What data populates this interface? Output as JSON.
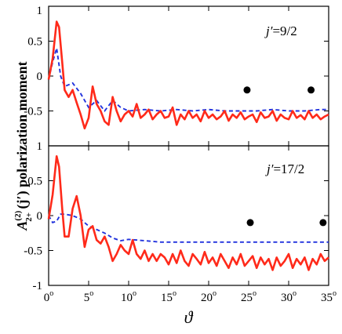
{
  "chart_data": [
    {
      "type": "line",
      "panel": "top",
      "annotation": "j′=9/2",
      "annotation_prefix": "j′",
      "annotation_value": "=9/2",
      "ylim": [
        -1,
        1
      ],
      "yticks": [
        -1,
        -0.5,
        0,
        0.5,
        1
      ],
      "ytick_labels": [
        "-1",
        "-0.5",
        "0",
        "0.5",
        "1"
      ],
      "xlim": [
        0,
        35
      ],
      "series": [
        {
          "style": "solid-red",
          "x": [
            0,
            0.5,
            1,
            1.3,
            1.7,
            2,
            2.5,
            3,
            3.5,
            4,
            4.5,
            5,
            5.5,
            6,
            6.5,
            7,
            7.5,
            8,
            8.5,
            9,
            9.5,
            10,
            10.5,
            11,
            11.5,
            12,
            12.5,
            13,
            13.5,
            14,
            14.5,
            15,
            15.5,
            16,
            16.5,
            17,
            17.5,
            18,
            18.5,
            19,
            19.5,
            20,
            20.5,
            21,
            21.5,
            22,
            22.5,
            23,
            23.5,
            24,
            24.5,
            25,
            25.5,
            26,
            26.5,
            27,
            27.5,
            28,
            28.5,
            29,
            29.5,
            30,
            30.5,
            31,
            31.5,
            32,
            32.5,
            33,
            33.5,
            34,
            34.5,
            35
          ],
          "y": [
            -0.05,
            0.25,
            0.78,
            0.7,
            0.2,
            -0.2,
            -0.3,
            -0.2,
            -0.38,
            -0.55,
            -0.75,
            -0.6,
            -0.15,
            -0.4,
            -0.5,
            -0.65,
            -0.7,
            -0.3,
            -0.5,
            -0.65,
            -0.55,
            -0.5,
            -0.58,
            -0.4,
            -0.6,
            -0.55,
            -0.48,
            -0.62,
            -0.55,
            -0.5,
            -0.6,
            -0.58,
            -0.45,
            -0.7,
            -0.55,
            -0.62,
            -0.5,
            -0.6,
            -0.55,
            -0.65,
            -0.5,
            -0.6,
            -0.55,
            -0.62,
            -0.58,
            -0.5,
            -0.64,
            -0.55,
            -0.6,
            -0.52,
            -0.62,
            -0.58,
            -0.55,
            -0.66,
            -0.52,
            -0.6,
            -0.58,
            -0.5,
            -0.64,
            -0.55,
            -0.6,
            -0.62,
            -0.5,
            -0.6,
            -0.56,
            -0.62,
            -0.5,
            -0.6,
            -0.55,
            -0.62,
            -0.58,
            -0.55
          ]
        },
        {
          "style": "dashed-blue",
          "x": [
            0,
            0.5,
            1,
            1.5,
            2,
            3,
            4,
            5,
            6,
            7,
            8,
            9,
            10,
            12,
            14,
            16,
            18,
            20,
            22,
            24,
            26,
            28,
            30,
            32,
            34,
            35
          ],
          "y": [
            -0.05,
            0.2,
            0.4,
            0.0,
            -0.15,
            -0.1,
            -0.25,
            -0.45,
            -0.35,
            -0.5,
            -0.35,
            -0.45,
            -0.5,
            -0.48,
            -0.5,
            -0.48,
            -0.5,
            -0.48,
            -0.5,
            -0.5,
            -0.5,
            -0.48,
            -0.5,
            -0.5,
            -0.48,
            -0.48
          ]
        }
      ],
      "markers": {
        "x": [
          24.8,
          32.8
        ],
        "y": [
          -0.2,
          -0.2
        ]
      }
    },
    {
      "type": "line",
      "panel": "bottom",
      "annotation": "j′=17/2",
      "annotation_prefix": "j′",
      "annotation_value": "=17/2",
      "ylim": [
        -1,
        1
      ],
      "yticks": [
        -1,
        -0.5,
        0,
        0.5,
        1
      ],
      "ytick_labels": [
        "-1",
        "-0.5",
        "0",
        "0.5",
        "1"
      ],
      "xlim": [
        0,
        35
      ],
      "xticks": [
        0,
        5,
        10,
        15,
        20,
        25,
        30,
        35
      ],
      "xtick_labels": [
        "0",
        "5",
        "10",
        "15",
        "20",
        "25",
        "30",
        "35"
      ],
      "series": [
        {
          "style": "solid-red",
          "x": [
            0,
            0.5,
            1,
            1.3,
            1.7,
            2,
            2.5,
            3,
            3.5,
            4,
            4.5,
            5,
            5.5,
            6,
            6.5,
            7,
            7.5,
            8,
            8.5,
            9,
            9.5,
            10,
            10.5,
            11,
            11.5,
            12,
            12.5,
            13,
            13.5,
            14,
            14.5,
            15,
            15.5,
            16,
            16.5,
            17,
            17.5,
            18,
            18.5,
            19,
            19.5,
            20,
            20.5,
            21,
            21.5,
            22,
            22.5,
            23,
            23.5,
            24,
            24.5,
            25,
            25.5,
            26,
            26.5,
            27,
            27.5,
            28,
            28.5,
            29,
            29.5,
            30,
            30.5,
            31,
            31.5,
            32,
            32.5,
            33,
            33.5,
            34,
            34.5,
            35
          ],
          "y": [
            -0.05,
            0.3,
            0.85,
            0.7,
            0.1,
            -0.3,
            -0.3,
            0.1,
            0.28,
            0.0,
            -0.45,
            -0.2,
            -0.15,
            -0.35,
            -0.4,
            -0.3,
            -0.45,
            -0.65,
            -0.55,
            -0.42,
            -0.5,
            -0.55,
            -0.35,
            -0.55,
            -0.62,
            -0.5,
            -0.65,
            -0.55,
            -0.65,
            -0.55,
            -0.6,
            -0.7,
            -0.55,
            -0.68,
            -0.5,
            -0.65,
            -0.72,
            -0.55,
            -0.62,
            -0.7,
            -0.52,
            -0.68,
            -0.6,
            -0.72,
            -0.55,
            -0.65,
            -0.75,
            -0.6,
            -0.7,
            -0.55,
            -0.72,
            -0.65,
            -0.58,
            -0.75,
            -0.6,
            -0.7,
            -0.62,
            -0.78,
            -0.6,
            -0.72,
            -0.65,
            -0.55,
            -0.75,
            -0.62,
            -0.7,
            -0.6,
            -0.78,
            -0.62,
            -0.7,
            -0.55,
            -0.65,
            -0.6
          ]
        },
        {
          "style": "dashed-blue",
          "x": [
            0,
            0.5,
            1,
            1.5,
            2,
            3,
            4,
            5,
            6,
            7,
            8,
            9,
            10,
            12,
            14,
            16,
            18,
            20,
            22,
            24,
            26,
            28,
            30,
            32,
            34,
            35
          ],
          "y": [
            0.0,
            -0.1,
            -0.08,
            0.02,
            0.02,
            0.0,
            -0.05,
            -0.15,
            -0.2,
            -0.25,
            -0.32,
            -0.36,
            -0.34,
            -0.36,
            -0.38,
            -0.38,
            -0.38,
            -0.38,
            -0.38,
            -0.38,
            -0.38,
            -0.38,
            -0.38,
            -0.38,
            -0.38,
            -0.38
          ]
        }
      ],
      "markers": {
        "x": [
          25.2,
          34.3
        ],
        "y": [
          -0.1,
          -0.1
        ]
      }
    }
  ],
  "labels": {
    "ylabel_prefix": "A",
    "ylabel_sub": "2+",
    "ylabel_sup": "(2)",
    "ylabel_rest": " (j′)  polarization moment",
    "xlabel": "ϑ",
    "degree": "o"
  },
  "colors": {
    "solid": "#ff2a1a",
    "dashed": "#2233dd",
    "marker": "#000000"
  }
}
